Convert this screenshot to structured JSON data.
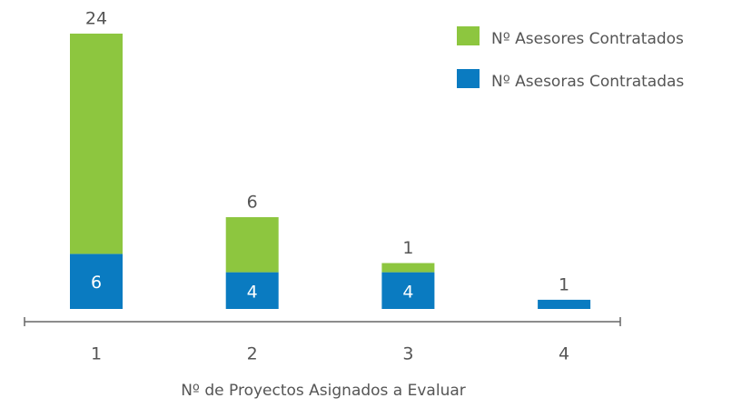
{
  "chart_data": {
    "type": "stacked_bar",
    "x_label": "Nº de Proyectos Asignados a Evaluar",
    "categories": [
      "1",
      "2",
      "3",
      "4"
    ],
    "series": [
      {
        "name": "Nº Asesores Contratados",
        "color": "#8dc63f",
        "values": [
          24,
          6,
          1,
          null
        ]
      },
      {
        "name": "Nº Asesoras Contratadas",
        "color": "#0a7bc1",
        "values": [
          6,
          4,
          4,
          1
        ]
      }
    ],
    "legend": "top-right"
  }
}
